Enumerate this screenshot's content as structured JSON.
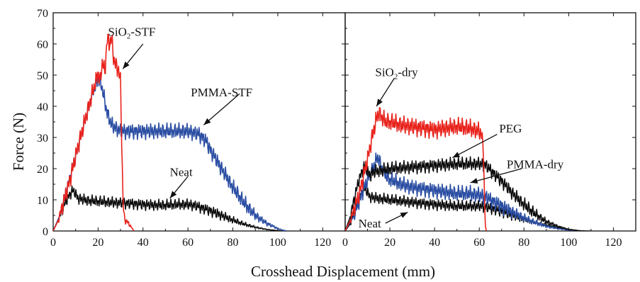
{
  "chart_data": {
    "type": "line",
    "xlabel": "Crosshead Displacement (mm)",
    "ylabel": "Force (N)",
    "ylim": [
      0,
      70
    ],
    "yticks": [
      0,
      10,
      20,
      30,
      40,
      50,
      60,
      70
    ],
    "xlim": [
      0,
      130
    ],
    "xticks": [
      0,
      20,
      40,
      60,
      80,
      100,
      120
    ],
    "colors": {
      "red": "#e8231c",
      "blue": "#2b4ea3",
      "black": "#0a0a0a"
    },
    "panels": [
      {
        "id": "left",
        "series": [
          {
            "key": "neat",
            "color": "black",
            "osc": [
              0.9,
              2.5
            ],
            "x": [
              0,
              3,
              6,
              8.5,
              9.5,
              11,
              15,
              20,
              25,
              30,
              35,
              40,
              45,
              50,
              55,
              60,
              63,
              66,
              70,
              75,
              80,
              85,
              90,
              95,
              100,
              102,
              104
            ],
            "y": [
              0,
              5,
              10,
              13,
              12.5,
              10.5,
              9.8,
              9.5,
              9.2,
              9,
              8.8,
              8.5,
              8.3,
              8.3,
              8.5,
              8.5,
              8.2,
              7.5,
              6.5,
              5,
              3.5,
              2.2,
              1.2,
              0.5,
              0.1,
              0,
              0
            ]
          },
          {
            "key": "pmma-stf",
            "color": "blue",
            "osc": [
              0.9,
              3.5
            ],
            "x": [
              0,
              3,
              6,
              10,
              14,
              17,
              19,
              20,
              21,
              22,
              24,
              26,
              30,
              40,
              50,
              60,
              65,
              68,
              70,
              75,
              80,
              85,
              90,
              95,
              100,
              102,
              104
            ],
            "y": [
              0,
              5,
              13,
              24,
              35,
              43,
              47,
              49,
              48,
              45,
              38,
              34,
              32,
              32,
              32,
              32,
              31,
              29,
              26,
              20,
              14,
              9,
              5,
              2.5,
              0.8,
              0.3,
              0
            ]
          },
          {
            "key": "sio2-stf",
            "color": "red",
            "osc": [
              0.9,
              4
            ],
            "x": [
              0,
              2,
              5,
              8,
              11,
              14,
              17,
              19,
              20,
              21,
              22,
              23,
              24,
              25,
              26,
              27,
              28,
              29,
              30,
              30.5,
              31,
              31.5,
              32,
              33,
              34,
              35,
              36
            ],
            "y": [
              0,
              3,
              10,
              18,
              27,
              35,
              43,
              48,
              51,
              48,
              55,
              50,
              62,
              60,
              62,
              55,
              53,
              52,
              48,
              30,
              12,
              5,
              3.5,
              3,
              2,
              1,
              0
            ]
          }
        ],
        "annotations": [
          {
            "key": "sio2-stf",
            "text": [
              "SiO",
              "2",
              "-STF"
            ],
            "tip": [
              31,
              52
            ],
            "tail": [
              40,
              60
            ],
            "label": [
              35,
              64
            ]
          },
          {
            "key": "pmma-stf",
            "text": [
              "PMMA-STF"
            ],
            "tip": [
              67,
              34
            ],
            "tail": [
              83,
              44
            ],
            "label": [
              75,
              44.5
            ]
          },
          {
            "key": "neat",
            "text": [
              "Neat"
            ],
            "tip": [
              52,
              10.5
            ],
            "tail": [
              60,
              17.5
            ],
            "label": [
              57,
              19
            ]
          }
        ]
      },
      {
        "id": "right",
        "series": [
          {
            "key": "neat-dry",
            "color": "black",
            "osc": [
              0.9,
              2.5
            ],
            "x": [
              0,
              2,
              4,
              6,
              7.5,
              8.5,
              9.5,
              11,
              14,
              20,
              30,
              40,
              50,
              55,
              60,
              62,
              65,
              70,
              75,
              80,
              85,
              90,
              95,
              100,
              105,
              108,
              110
            ],
            "y": [
              0,
              2,
              6,
              10,
              12.5,
              13.5,
              13,
              11,
              10.5,
              10,
              9.2,
              8.5,
              8,
              8,
              8,
              7.8,
              7.3,
              6.3,
              5,
              3.8,
              2.7,
              1.8,
              1,
              0.5,
              0.1,
              0,
              0
            ]
          },
          {
            "key": "pmma-dry",
            "color": "blue",
            "osc": [
              0.9,
              3.5
            ],
            "x": [
              0,
              4,
              8,
              11,
              13,
              14,
              15,
              16,
              18,
              20,
              25,
              30,
              40,
              50,
              55,
              60,
              63,
              65,
              70,
              75,
              80,
              85,
              90,
              95,
              100,
              103,
              106
            ],
            "y": [
              0,
              5,
              13,
              18,
              21,
              23,
              23.5,
              21,
              18,
              16.5,
              15,
              14,
              13,
              12,
              12,
              11.5,
              10.8,
              10,
              8,
              6,
              4.2,
              2.7,
              1.5,
              0.8,
              0.3,
              0.1,
              0
            ]
          },
          {
            "key": "peg",
            "color": "black",
            "osc": [
              0.9,
              3
            ],
            "x": [
              0,
              2,
              4,
              6,
              8,
              9,
              10,
              11,
              13,
              17,
              20,
              30,
              40,
              50,
              55,
              60,
              63,
              65,
              70,
              75,
              80,
              85,
              90,
              95,
              100,
              104,
              107
            ],
            "y": [
              0,
              4,
              10,
              16,
              20,
              21,
              19,
              18,
              19,
              19.5,
              20,
              20.5,
              21,
              21.5,
              21.5,
              21.5,
              21,
              19.5,
              16,
              12,
              8.5,
              5.5,
              3,
              1.5,
              0.5,
              0.1,
              0
            ]
          },
          {
            "key": "sio2-dry",
            "color": "red",
            "osc": [
              0.9,
              4
            ],
            "x": [
              0,
              2,
              4,
              6,
              8,
              10,
              12,
              14,
              15,
              16,
              18,
              20,
              25,
              30,
              35,
              40,
              45,
              50,
              55,
              58,
              60,
              61,
              62,
              62.3,
              62.6,
              63,
              63.2
            ],
            "y": [
              0,
              3,
              7,
              11,
              17,
              23,
              30,
              36,
              38,
              37,
              35,
              35,
              34,
              33.5,
              33,
              32.5,
              33,
              33.5,
              33,
              32.5,
              32,
              31,
              25,
              10,
              3,
              0.5,
              0
            ]
          }
        ],
        "annotations": [
          {
            "key": "sio2-dry",
            "text": [
              "SiO",
              "2",
              "-dry"
            ],
            "tip": [
              14,
              40
            ],
            "tail": [
              22,
              49
            ],
            "label": [
              23,
              51
            ]
          },
          {
            "key": "peg",
            "text": [
              "PEG"
            ],
            "tip": [
              48,
              23.5
            ],
            "tail": [
              68,
              31
            ],
            "label": [
              74,
              33
            ]
          },
          {
            "key": "pmma-dry",
            "text": [
              "PMMA-dry"
            ],
            "tip": [
              56,
              15.5
            ],
            "tail": [
              79,
              20
            ],
            "label": [
              85,
              21.5
            ]
          },
          {
            "key": "neat-dry",
            "text": [
              "Neat"
            ],
            "tip": [
              28,
              6
            ],
            "tail": [
              18,
              2.5
            ],
            "label": [
              11,
              2.5
            ]
          }
        ]
      }
    ]
  }
}
